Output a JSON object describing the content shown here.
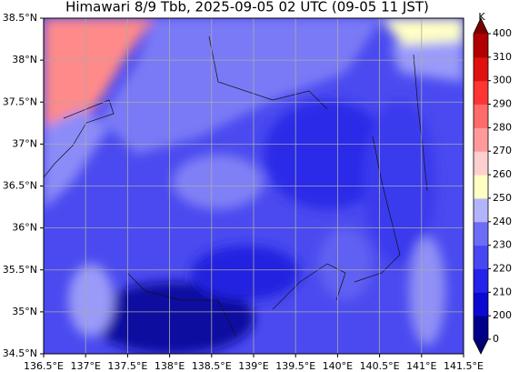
{
  "title": "Himawari 8/9 Tbb, 2025-09-05 02 UTC (09-05 11 JST)",
  "latitude_labels": [
    "34.5°N",
    "35°N",
    "35.5°N",
    "36°N",
    "36.5°N",
    "37°N",
    "37.5°N",
    "38°N",
    "38.5°N"
  ],
  "longitude_labels": [
    "136.5°E",
    "137°E",
    "137.5°E",
    "138°E",
    "138.5°E",
    "139°E",
    "139.5°E",
    "140°E",
    "140.5°E",
    "141°E",
    "141.5°E"
  ],
  "colorbar": {
    "unit": "K",
    "labels": [
      "0",
      "200",
      "210",
      "220",
      "230",
      "240",
      "250",
      "260",
      "270",
      "280",
      "290",
      "300",
      "310",
      "400"
    ],
    "colors": [
      "#00008b",
      "#0a0ad2",
      "#2323ec",
      "#4848f2",
      "#6c6cf6",
      "#b4b4fc",
      "#ffffc4",
      "#ffcfcf",
      "#ff9a9a",
      "#ff6a6a",
      "#ff3434",
      "#e01010",
      "#b00000"
    ],
    "under_color": "#000070",
    "over_color": "#7a0000"
  }
}
